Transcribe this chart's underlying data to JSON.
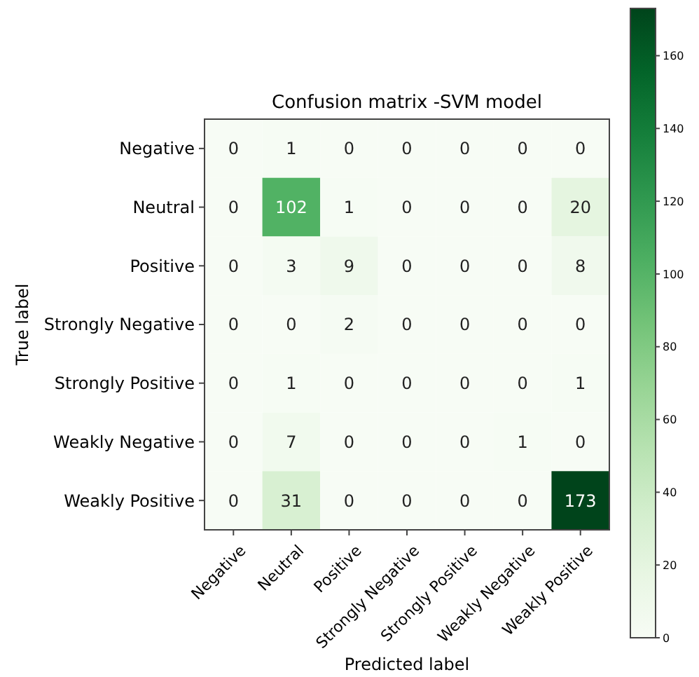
{
  "chart_data": {
    "type": "heatmap",
    "title": "Confusion matrix -SVM model",
    "xlabel": "Predicted label",
    "ylabel": "True label",
    "categories": [
      "Negative",
      "Neutral",
      "Positive",
      "Strongly Negative",
      "Strongly Positive",
      "Weakly Negative",
      "Weakly Positive"
    ],
    "y_categories": [
      "Negative",
      "Neutral",
      "Positive",
      "Strongly Negative",
      "Strongly Positive",
      "Weakly Negative",
      "Weakly Positive"
    ],
    "cells": [
      [
        0,
        1,
        0,
        0,
        0,
        0,
        0
      ],
      [
        0,
        102,
        1,
        0,
        0,
        0,
        20
      ],
      [
        0,
        3,
        9,
        0,
        0,
        0,
        8
      ],
      [
        0,
        0,
        2,
        0,
        0,
        0,
        0
      ],
      [
        0,
        1,
        0,
        0,
        0,
        0,
        1
      ],
      [
        0,
        7,
        0,
        0,
        0,
        1,
        0
      ],
      [
        0,
        31,
        0,
        0,
        0,
        0,
        173
      ]
    ],
    "clim": [
      0,
      173
    ],
    "cticks": [
      0,
      20,
      40,
      60,
      80,
      100,
      120,
      140,
      160
    ],
    "data_labels": true
  }
}
